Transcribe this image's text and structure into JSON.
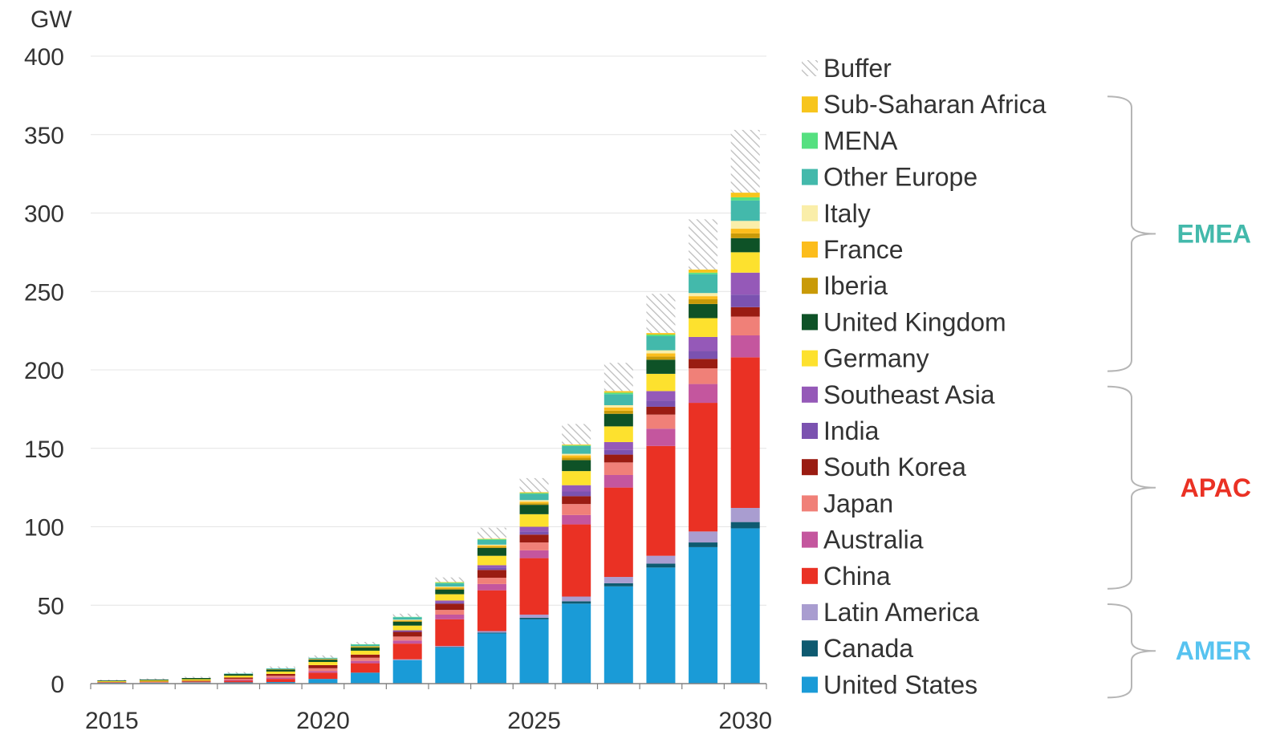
{
  "chart_data": {
    "type": "bar",
    "stacked": true,
    "yunit": "GW",
    "ylim": [
      0,
      400
    ],
    "yticks": [
      0,
      50,
      100,
      150,
      200,
      250,
      300,
      350,
      400
    ],
    "xtick_labels": [
      "2015",
      "2020",
      "2025",
      "2030"
    ],
    "categories": [
      "2015",
      "2016",
      "2017",
      "2018",
      "2019",
      "2020",
      "2021",
      "2022",
      "2023",
      "2024",
      "2025",
      "2026",
      "2027",
      "2028",
      "2029",
      "2030"
    ],
    "grid": true,
    "legend_position": "right",
    "series": [
      {
        "name": "United States",
        "color": "#1a9bd7",
        "group": "AMER",
        "values": [
          0.5,
          0.6,
          0.7,
          0.8,
          1.0,
          3.0,
          7.0,
          15.0,
          23.0,
          32.0,
          41.0,
          51.0,
          62.0,
          74.0,
          87.0,
          99.0
        ]
      },
      {
        "name": "Canada",
        "color": "#0e5a70",
        "group": "AMER",
        "values": [
          0,
          0,
          0,
          0,
          0,
          0,
          0,
          0,
          0.3,
          0.5,
          1.0,
          1.5,
          2.0,
          2.5,
          3.0,
          4.0
        ]
      },
      {
        "name": "Latin America",
        "color": "#a99dd0",
        "group": "AMER",
        "values": [
          0,
          0,
          0,
          0,
          0,
          0,
          0,
          0.5,
          0.7,
          1.0,
          2.0,
          3.0,
          4.0,
          5.0,
          7.0,
          9.0
        ]
      },
      {
        "name": "China",
        "color": "#ea3124",
        "group": "APAC",
        "values": [
          0,
          0,
          0,
          1.0,
          2.0,
          4.0,
          6.0,
          10.0,
          17.0,
          26.0,
          36.0,
          46.0,
          57.0,
          70.0,
          82.0,
          96.0
        ]
      },
      {
        "name": "Australia",
        "color": "#c4569e",
        "group": "APAC",
        "values": [
          0,
          0,
          0,
          0.5,
          0.8,
          1.0,
          1.5,
          2.0,
          3.0,
          4.0,
          5.0,
          6.0,
          8.0,
          11.0,
          12.0,
          14.0
        ]
      },
      {
        "name": "Japan",
        "color": "#f08078",
        "group": "APAC",
        "values": [
          0.3,
          0.4,
          0.6,
          0.8,
          1.2,
          1.8,
          2.0,
          2.5,
          3.0,
          4.0,
          5.0,
          7.0,
          8.0,
          9.0,
          10.0,
          12.0
        ]
      },
      {
        "name": "South Korea",
        "color": "#9a1c12",
        "group": "APAC",
        "values": [
          0.2,
          0.3,
          0.5,
          0.8,
          1.2,
          2.0,
          2.0,
          3.0,
          4.0,
          5.0,
          5.0,
          5.0,
          5.0,
          5.0,
          6.0,
          6.0
        ]
      },
      {
        "name": "India",
        "color": "#7b52b0",
        "group": "APAC",
        "values": [
          0,
          0,
          0,
          0,
          0,
          0,
          0,
          0.5,
          1.0,
          1.5,
          2.0,
          3.0,
          3.0,
          4.0,
          5.0,
          8.0
        ]
      },
      {
        "name": "Southeast Asia",
        "color": "#9559b8",
        "group": "APAC",
        "values": [
          0,
          0,
          0,
          0,
          0,
          0,
          0,
          0.5,
          1.0,
          1.5,
          3.0,
          4.0,
          5.0,
          6.0,
          9.0,
          14.0
        ]
      },
      {
        "name": "Germany",
        "color": "#fde12e",
        "group": "EMEA",
        "values": [
          0.6,
          0.8,
          1.0,
          1.2,
          1.5,
          2.0,
          2.5,
          3.0,
          4.0,
          6.0,
          8.0,
          9.0,
          10.0,
          11.0,
          12.0,
          13.0
        ]
      },
      {
        "name": "United Kingdom",
        "color": "#0e5227",
        "group": "EMEA",
        "values": [
          0.5,
          0.6,
          0.8,
          1.0,
          1.3,
          1.5,
          2.0,
          2.5,
          3.0,
          5.0,
          6.0,
          7.0,
          8.0,
          9.0,
          9.0,
          9.0
        ]
      },
      {
        "name": "Iberia",
        "color": "#c99a08",
        "group": "EMEA",
        "values": [
          0,
          0,
          0,
          0,
          0,
          0.2,
          0.3,
          0.5,
          0.7,
          0.8,
          1.0,
          1.5,
          2.0,
          2.0,
          3.0,
          3.0
        ]
      },
      {
        "name": "France",
        "color": "#fcbd1c",
        "group": "EMEA",
        "values": [
          0,
          0,
          0,
          0,
          0.2,
          0.3,
          0.5,
          0.5,
          0.7,
          0.8,
          1.0,
          1.5,
          2.0,
          2.0,
          2.0,
          3.0
        ]
      },
      {
        "name": "Italy",
        "color": "#faeea9",
        "group": "EMEA",
        "values": [
          0,
          0,
          0,
          0,
          0,
          0,
          0,
          0.3,
          0.5,
          0.5,
          1.0,
          1.0,
          1.5,
          2.0,
          2.0,
          5.0
        ]
      },
      {
        "name": "Other Europe",
        "color": "#43b9ab",
        "group": "EMEA",
        "values": [
          0,
          0,
          0,
          0.3,
          0.5,
          0.7,
          1.0,
          1.5,
          2.0,
          3.0,
          4.0,
          5.0,
          7.0,
          9.0,
          12.0,
          13.0
        ]
      },
      {
        "name": "MENA",
        "color": "#55e080",
        "group": "EMEA",
        "values": [
          0,
          0,
          0,
          0,
          0,
          0,
          0.3,
          0.3,
          0.5,
          0.5,
          0.5,
          0.5,
          1.0,
          1.0,
          1.0,
          2.0
        ]
      },
      {
        "name": "Sub-Saharan Africa",
        "color": "#f7c51c",
        "group": "EMEA",
        "values": [
          0,
          0,
          0,
          0,
          0,
          0,
          0,
          0,
          0.3,
          0.3,
          0.5,
          0.5,
          1.0,
          1.0,
          2.0,
          3.0
        ]
      },
      {
        "name": "Buffer",
        "color": "#d6d6d6",
        "pattern": "hatch",
        "values": [
          0.5,
          0.6,
          0.8,
          1.0,
          1.2,
          1.5,
          1.5,
          2.0,
          3.0,
          7.0,
          9.0,
          13.0,
          18.0,
          25.0,
          32.0,
          40.0
        ]
      }
    ],
    "legend_order": [
      "Buffer",
      "Sub-Saharan Africa",
      "MENA",
      "Other Europe",
      "Italy",
      "France",
      "Iberia",
      "United Kingdom",
      "Germany",
      "Southeast Asia",
      "India",
      "South Korea",
      "Japan",
      "Australia",
      "China",
      "Latin America",
      "Canada",
      "United States"
    ],
    "groups": [
      {
        "name": "EMEA",
        "color": "#43b9ab",
        "first": "Sub-Saharan Africa",
        "last": "Germany"
      },
      {
        "name": "APAC",
        "color": "#ea3124",
        "first": "Southeast Asia",
        "last": "China"
      },
      {
        "name": "AMER",
        "color": "#57c3f0",
        "first": "Latin America",
        "last": "United States"
      }
    ]
  }
}
